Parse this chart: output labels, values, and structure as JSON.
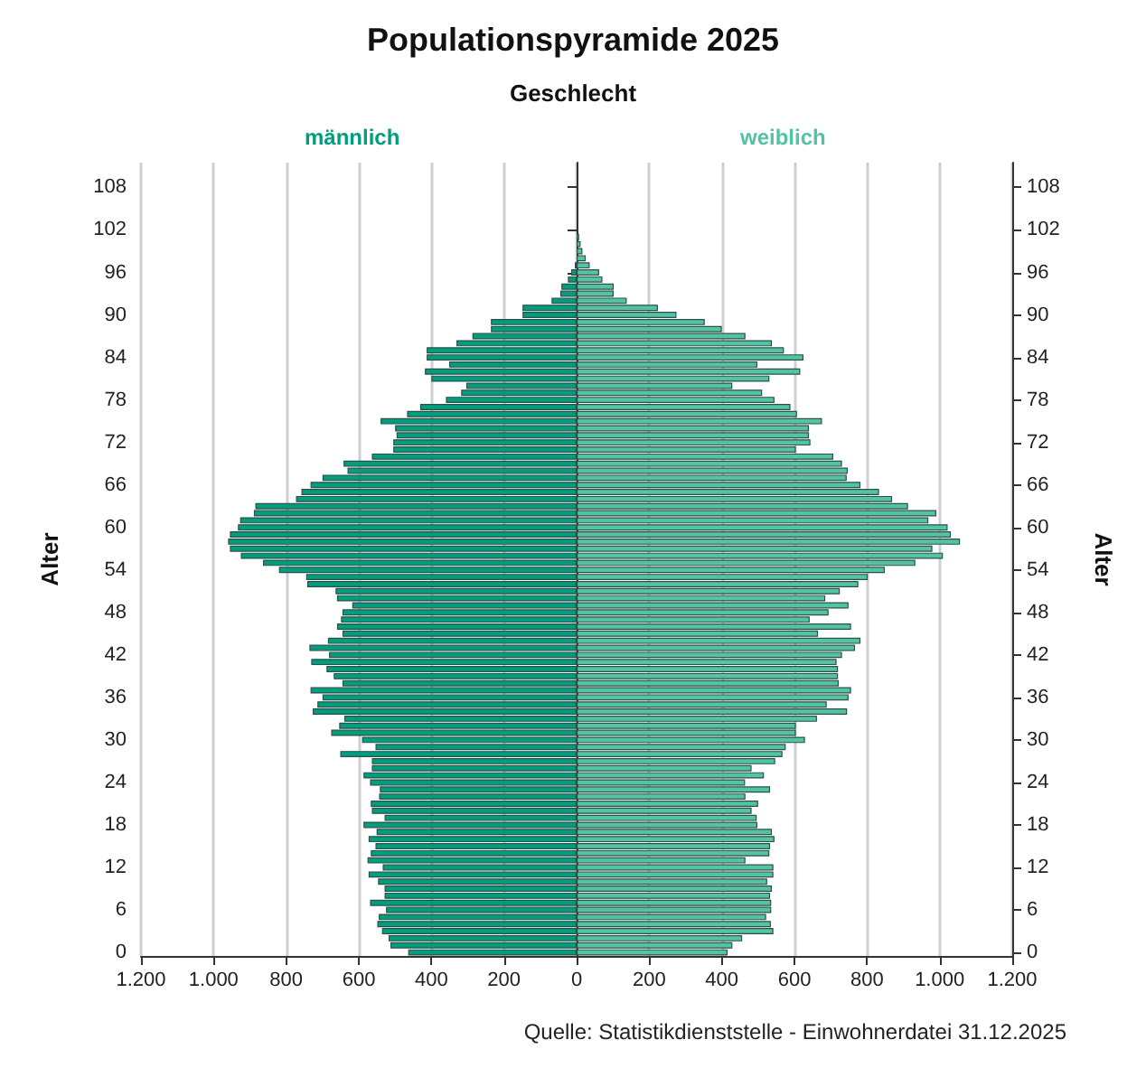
{
  "chart_data": {
    "type": "bar",
    "orientation": "horizontal",
    "title": "Populationspyramide 2025",
    "subtitle": "Geschlecht",
    "ylabel": "Alter",
    "y2label": "Alter",
    "annotations": [
      "Quelle: Statistikdienststelle - Einwohnerdatei 31.12.2025"
    ],
    "categories": [
      null,
      null,
      null,
      "108",
      null,
      null,
      null,
      null,
      null,
      "102",
      null,
      null,
      null,
      null,
      null,
      "96",
      null,
      null,
      null,
      null,
      null,
      "90",
      null,
      null,
      null,
      null,
      null,
      "84",
      null,
      null,
      null,
      null,
      null,
      "78",
      null,
      null,
      null,
      null,
      null,
      "72",
      null,
      null,
      null,
      null,
      null,
      "66",
      null,
      null,
      null,
      null,
      null,
      "60",
      null,
      null,
      null,
      null,
      null,
      "54",
      null,
      null,
      null,
      null,
      null,
      "48",
      null,
      null,
      null,
      null,
      null,
      "42",
      null,
      null,
      null,
      null,
      null,
      "36",
      null,
      null,
      null,
      null,
      null,
      "30",
      null,
      null,
      null,
      null,
      null,
      "24",
      null,
      null,
      null,
      null,
      null,
      "18",
      null,
      null,
      null,
      null,
      null,
      "12",
      null,
      null,
      null,
      null,
      null,
      "6",
      null,
      null,
      null,
      null,
      null,
      "0"
    ],
    "series": [
      {
        "name": "männlich",
        "color": "#009e7e",
        "values": [
          null,
          null,
          null,
          null,
          null,
          null,
          null,
          null,
          null,
          null,
          null,
          null,
          null,
          null,
          -5,
          -15,
          -24,
          -42,
          -45,
          -69,
          -149,
          -149,
          -236,
          -236,
          -287,
          -331,
          -413,
          -413,
          -351,
          -418,
          -400,
          -304,
          -318,
          -360,
          -431,
          -467,
          -540,
          -500,
          -496,
          -505,
          -505,
          -564,
          -642,
          -631,
          -700,
          -733,
          -758,
          -773,
          -885,
          -889,
          -927,
          -933,
          -955,
          -960,
          -955,
          -925,
          -864,
          -820,
          -745,
          -742,
          -664,
          -660,
          -618,
          -645,
          -649,
          -660,
          -645,
          -685,
          -736,
          -682,
          -731,
          -689,
          -669,
          -645,
          -733,
          -700,
          -714,
          -727,
          -640,
          -654,
          -676,
          -591,
          -554,
          -651,
          -564,
          -564,
          -587,
          -569,
          -542,
          -544,
          -567,
          -564,
          -529,
          -587,
          -551,
          -573,
          -554,
          -567,
          -576,
          -534,
          -573,
          -547,
          -529,
          -529,
          -569,
          -525,
          -545,
          -549,
          -536,
          -518,
          -513,
          -464
        ]
      },
      {
        "name": "weiblich",
        "color": "#52c4a4",
        "values": [
          null,
          null,
          null,
          null,
          null,
          null,
          null,
          null,
          null,
          null,
          7,
          11,
          16,
          25,
          36,
          62,
          71,
          102,
          102,
          138,
          224,
          275,
          353,
          400,
          465,
          538,
          571,
          625,
          498,
          616,
          531,
          429,
          511,
          545,
          589,
          607,
          676,
          640,
          640,
          644,
          604,
          707,
          731,
          747,
          744,
          782,
          833,
          869,
          913,
          991,
          969,
          1022,
          1031,
          1056,
          980,
          1009,
          933,
          849,
          802,
          776,
          725,
          685,
          749,
          694,
          642,
          756,
          665,
          782,
          767,
          731,
          716,
          720,
          720,
          722,
          756,
          749,
          689,
          745,
          662,
          604,
          604,
          629,
          576,
          567,
          547,
          482,
          516,
          464,
          533,
          465,
          500,
          482,
          496,
          498,
          538,
          545,
          533,
          531,
          465,
          542,
          542,
          525,
          538,
          533,
          536,
          536,
          522,
          535,
          542,
          456,
          429,
          416
        ]
      }
    ],
    "xlim": [
      -1200,
      1200
    ],
    "xticks": [
      {
        "value": -1200,
        "label": "1.200"
      },
      {
        "value": -1000,
        "label": "1.000"
      },
      {
        "value": -800,
        "label": "800"
      },
      {
        "value": -600,
        "label": "600"
      },
      {
        "value": -400,
        "label": "400"
      },
      {
        "value": -200,
        "label": "200"
      },
      0,
      200,
      400,
      600,
      800,
      {
        "value": 1000,
        "label": "1.000"
      },
      {
        "value": 1200,
        "label": "1.200"
      }
    ],
    "grid": "x",
    "legend": false,
    "stacked": true
  }
}
